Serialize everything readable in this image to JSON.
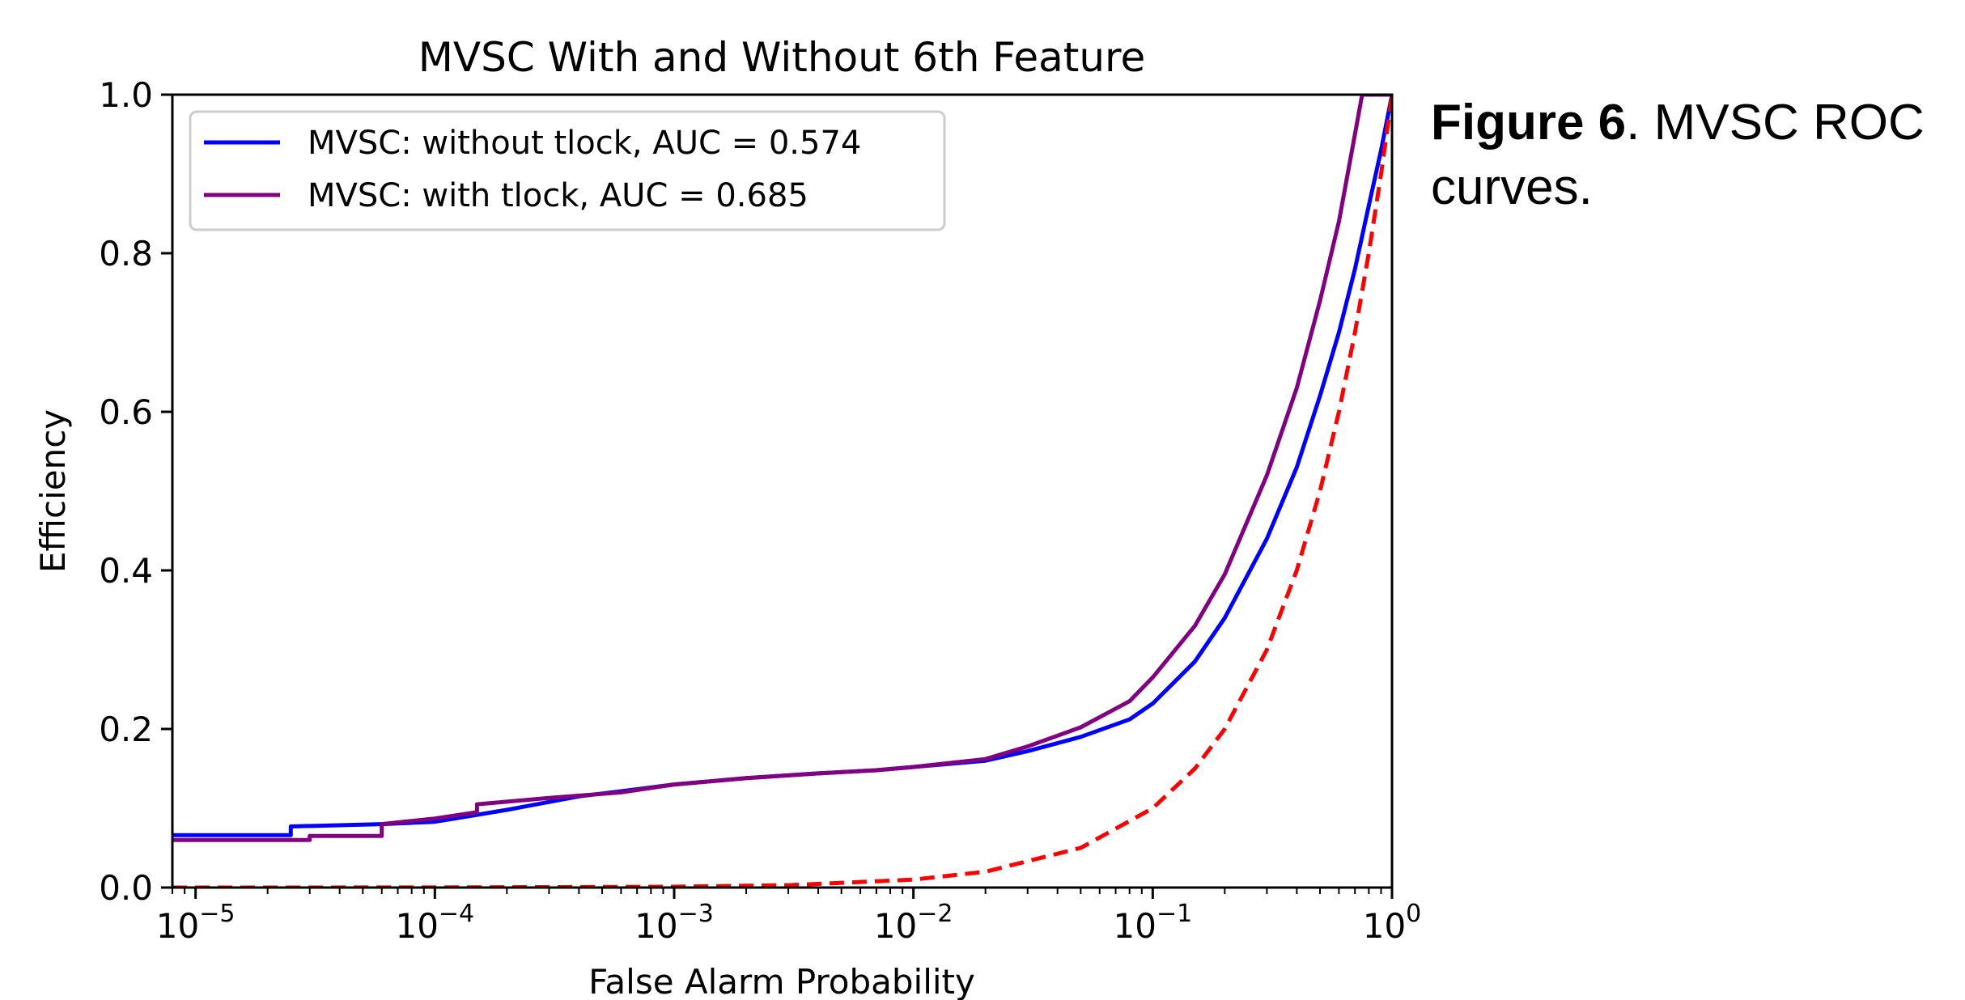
{
  "caption": {
    "bold": "Figure 6",
    "rest": ". MVSC ROC curves."
  },
  "chart_data": {
    "type": "line",
    "title": "MVSC With and Without 6th Feature",
    "xlabel": "False Alarm Probability",
    "ylabel": "Efficiency",
    "xscale": "log",
    "xlim": [
      8e-06,
      1
    ],
    "ylim": [
      0.0,
      1.0
    ],
    "x_ticks": [
      {
        "value": 1e-05,
        "base": "10",
        "exp": "−5"
      },
      {
        "value": 0.0001,
        "base": "10",
        "exp": "−4"
      },
      {
        "value": 0.001,
        "base": "10",
        "exp": "−3"
      },
      {
        "value": 0.01,
        "base": "10",
        "exp": "−2"
      },
      {
        "value": 0.1,
        "base": "10",
        "exp": "−1"
      },
      {
        "value": 1,
        "base": "10",
        "exp": "0"
      }
    ],
    "y_ticks": [
      "0.0",
      "0.2",
      "0.4",
      "0.6",
      "0.8",
      "1.0"
    ],
    "legend_position": "upper-left",
    "series": [
      {
        "name": "MVSC: without tlock, AUC = 0.574",
        "color": "#0000ff",
        "style": "solid",
        "x": [
          8e-06,
          2.5e-05,
          2.5e-05,
          6e-05,
          0.0001,
          0.0002,
          0.0004,
          0.0007,
          0.001,
          0.002,
          0.004,
          0.007,
          0.01,
          0.02,
          0.03,
          0.05,
          0.08,
          0.1,
          0.15,
          0.2,
          0.3,
          0.4,
          0.5,
          0.6,
          0.7,
          0.8,
          0.9,
          1.0
        ],
        "y": [
          0.066,
          0.066,
          0.077,
          0.08,
          0.083,
          0.098,
          0.115,
          0.124,
          0.13,
          0.138,
          0.144,
          0.148,
          0.152,
          0.16,
          0.172,
          0.19,
          0.212,
          0.232,
          0.285,
          0.34,
          0.44,
          0.53,
          0.62,
          0.7,
          0.78,
          0.86,
          0.93,
          1.0
        ]
      },
      {
        "name": "MVSC: with tlock, AUC = 0.685",
        "color": "#800080",
        "style": "solid",
        "x": [
          8e-06,
          3e-05,
          3e-05,
          6e-05,
          6e-05,
          0.0001,
          0.00015,
          0.00015,
          0.0003,
          0.0006,
          0.001,
          0.002,
          0.004,
          0.007,
          0.01,
          0.02,
          0.03,
          0.05,
          0.08,
          0.1,
          0.15,
          0.2,
          0.3,
          0.4,
          0.5,
          0.6,
          0.7,
          0.75,
          0.8,
          1.0
        ],
        "y": [
          0.06,
          0.06,
          0.065,
          0.065,
          0.08,
          0.087,
          0.095,
          0.105,
          0.113,
          0.12,
          0.13,
          0.138,
          0.144,
          0.148,
          0.152,
          0.162,
          0.178,
          0.202,
          0.235,
          0.265,
          0.33,
          0.395,
          0.52,
          0.63,
          0.74,
          0.84,
          0.95,
          1.0,
          1.0,
          1.0
        ]
      },
      {
        "name": "",
        "color": "#ff0000",
        "style": "dashed",
        "x": [
          8e-06,
          0.0001,
          0.001,
          0.003,
          0.01,
          0.02,
          0.05,
          0.1,
          0.15,
          0.2,
          0.3,
          0.4,
          0.5,
          0.6,
          0.7,
          0.8,
          0.9,
          1.0
        ],
        "y": [
          0.0,
          0.0001,
          0.001,
          0.003,
          0.01,
          0.02,
          0.05,
          0.1,
          0.15,
          0.2,
          0.3,
          0.4,
          0.5,
          0.6,
          0.7,
          0.8,
          0.9,
          1.0
        ]
      }
    ]
  }
}
